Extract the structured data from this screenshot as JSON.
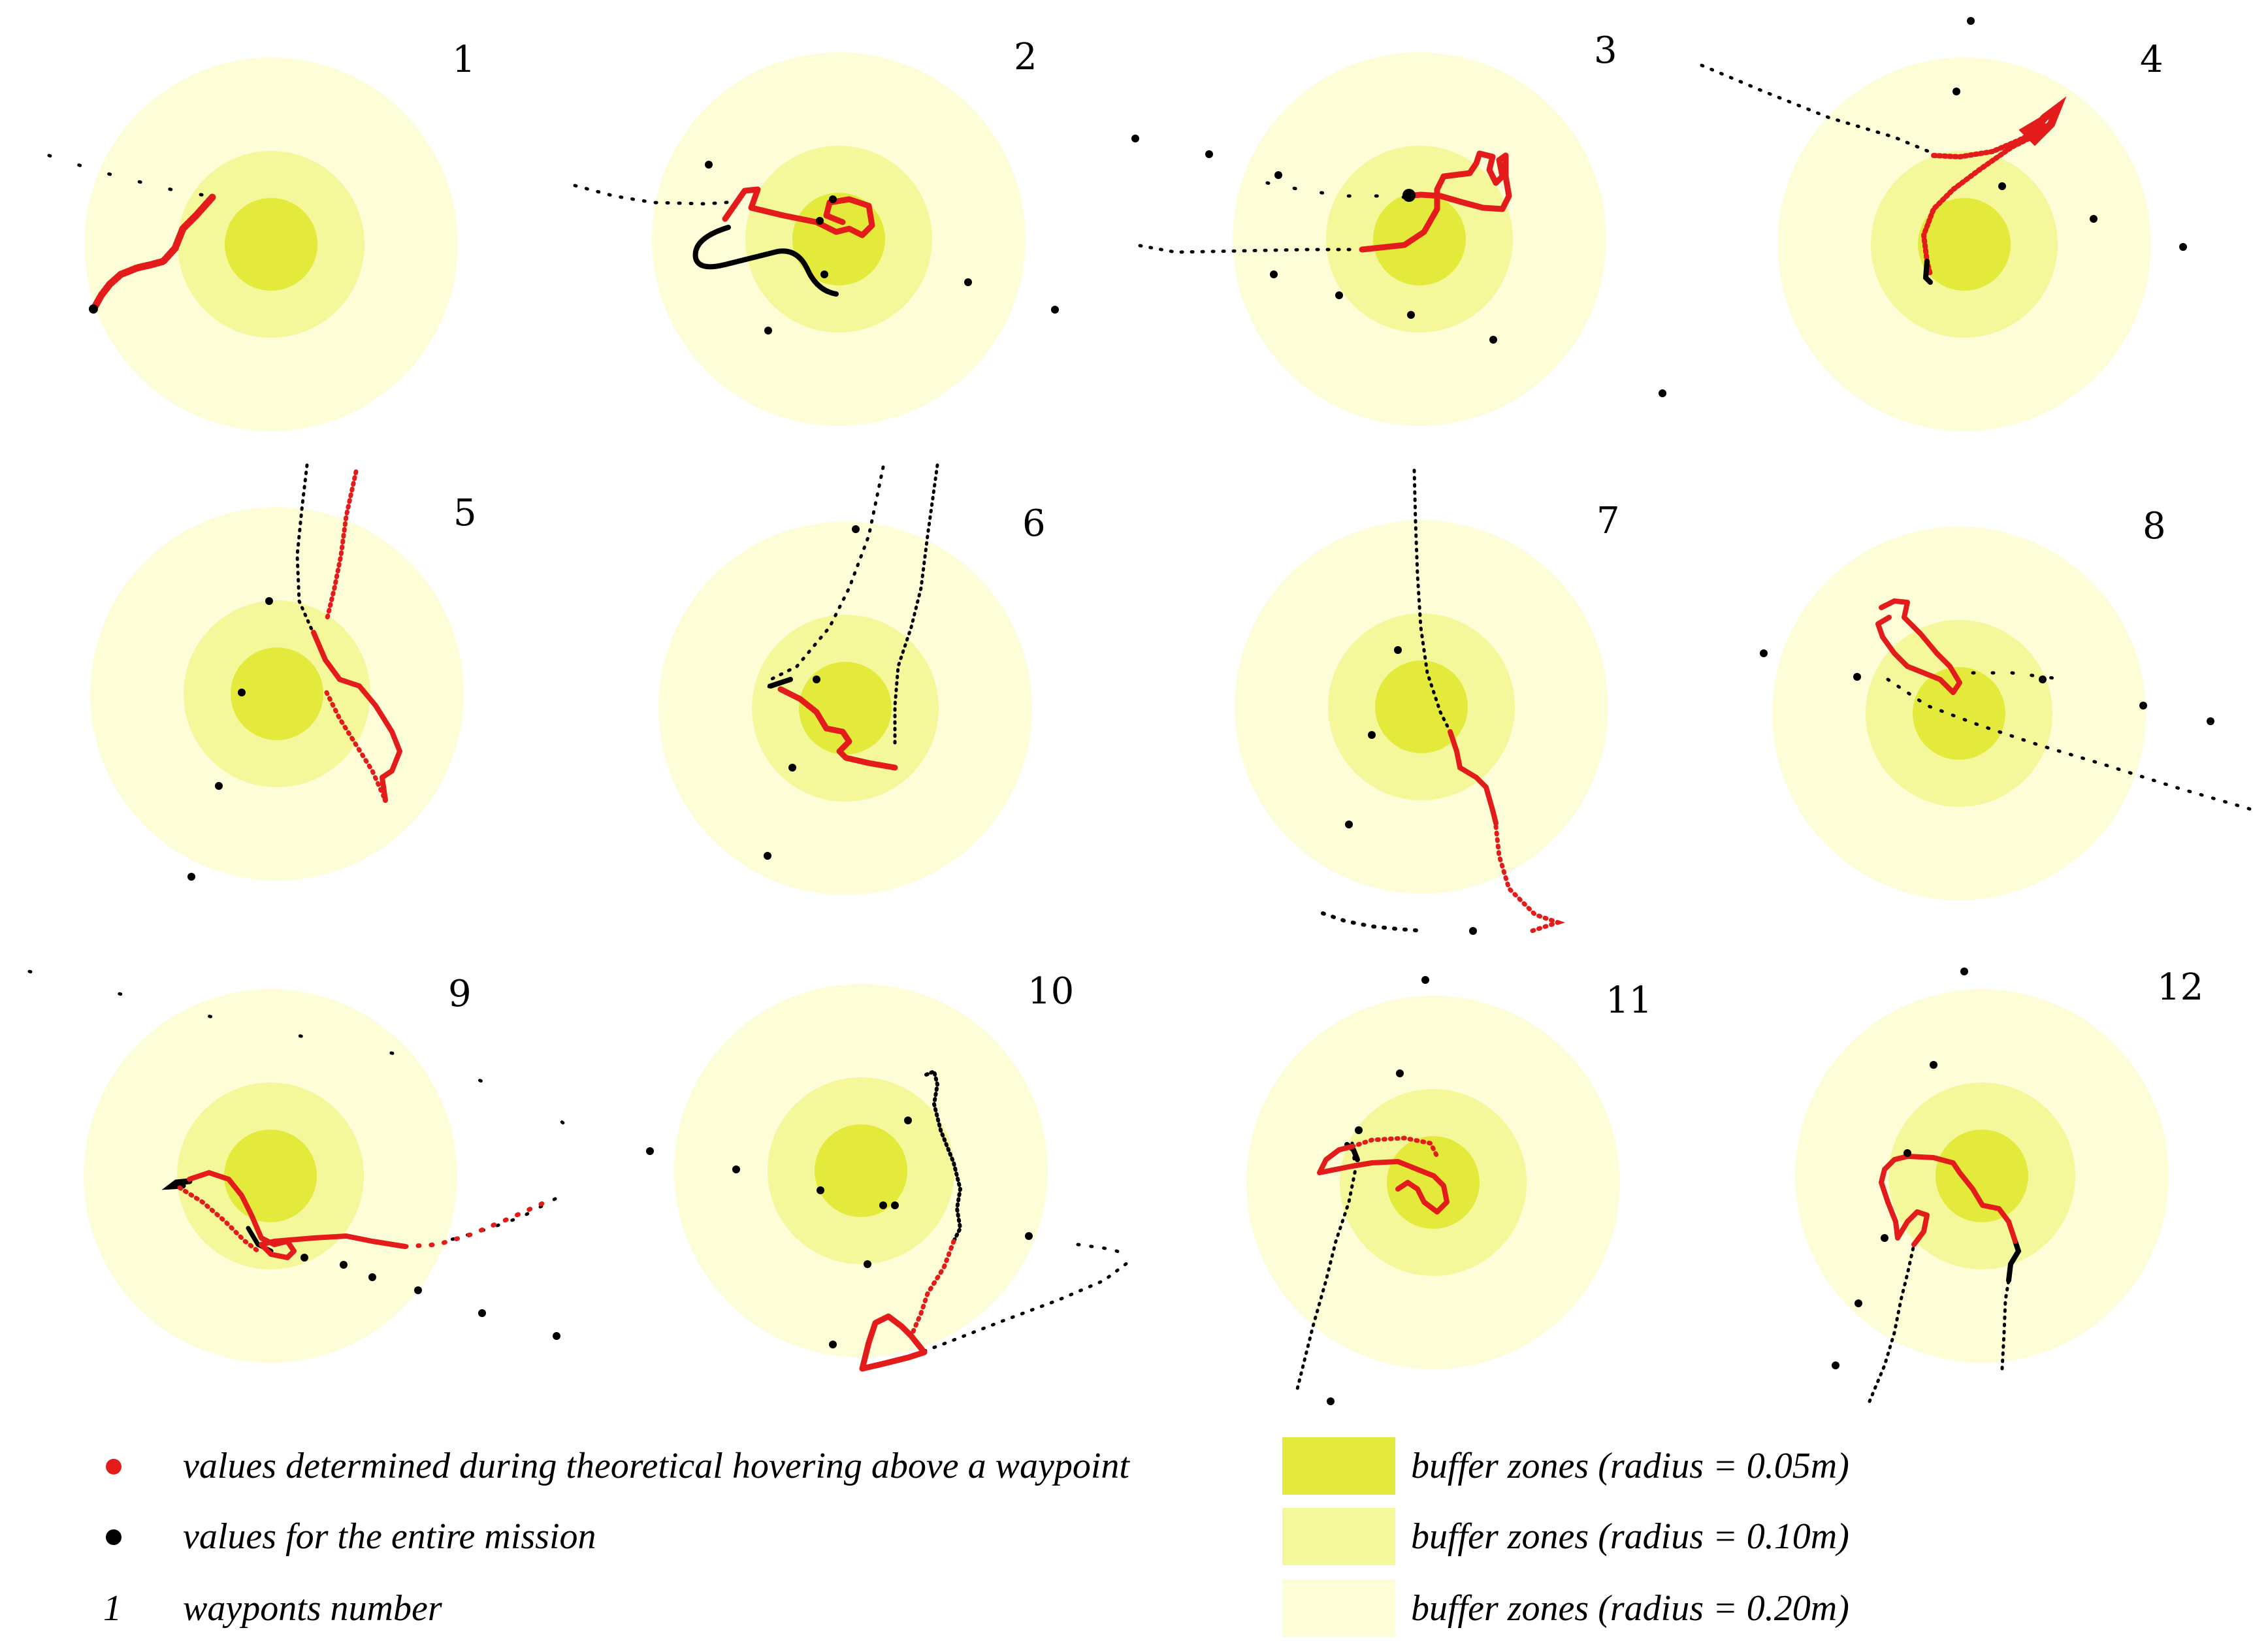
{
  "colors": {
    "zone_005": "#e3ea3b",
    "zone_010": "#f4f79a",
    "zone_020": "#fdfdd8",
    "hover_points": "#e31b1b",
    "mission_points": "#000000"
  },
  "waypoints": [
    {
      "number": "1"
    },
    {
      "number": "2"
    },
    {
      "number": "3"
    },
    {
      "number": "4"
    },
    {
      "number": "5"
    },
    {
      "number": "6"
    },
    {
      "number": "7"
    },
    {
      "number": "8"
    },
    {
      "number": "9"
    },
    {
      "number": "10"
    },
    {
      "number": "11"
    },
    {
      "number": "12"
    }
  ],
  "legend": {
    "hover": "values determined during theoretical hovering above a waypoint",
    "mission": "values for the entire mission",
    "number_symbol": "1",
    "number_label": "wayponts number",
    "zone_005": "buffer zones (radius = 0.05m)",
    "zone_010": "buffer zones (radius = 0.10m)",
    "zone_020": "buffer zones (radius = 0.20m)"
  }
}
